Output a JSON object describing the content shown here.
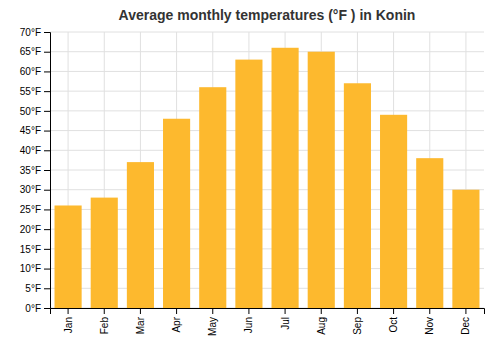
{
  "chart_data": {
    "type": "bar",
    "title": "Average monthly temperatures (°F ) in Konin",
    "categories": [
      "Jan",
      "Feb",
      "Mar",
      "Apr",
      "May",
      "Jun",
      "Jul",
      "Aug",
      "Sep",
      "Oct",
      "Nov",
      "Dec"
    ],
    "values": [
      26,
      28,
      37,
      48,
      56,
      63,
      66,
      65,
      57,
      49,
      38,
      30
    ],
    "color": "#FDB92E",
    "ylim": [
      0,
      70
    ],
    "yticks": [
      {
        "value": 0,
        "label": "0°F"
      },
      {
        "value": 5,
        "label": "5°F"
      },
      {
        "value": 10,
        "label": "10°F"
      },
      {
        "value": 15,
        "label": "15°F"
      },
      {
        "value": 20,
        "label": "20°F"
      },
      {
        "value": 25,
        "label": "25°F"
      },
      {
        "value": 30,
        "label": "30°F"
      },
      {
        "value": 35,
        "label": "35°F"
      },
      {
        "value": 40,
        "label": "40°F"
      },
      {
        "value": 45,
        "label": "45°F"
      },
      {
        "value": 50,
        "label": "50°F"
      },
      {
        "value": 55,
        "label": "55°F"
      },
      {
        "value": 60,
        "label": "60°F"
      },
      {
        "value": 65,
        "label": "65°F"
      },
      {
        "value": 70,
        "label": "70°F"
      }
    ],
    "grid": true
  }
}
